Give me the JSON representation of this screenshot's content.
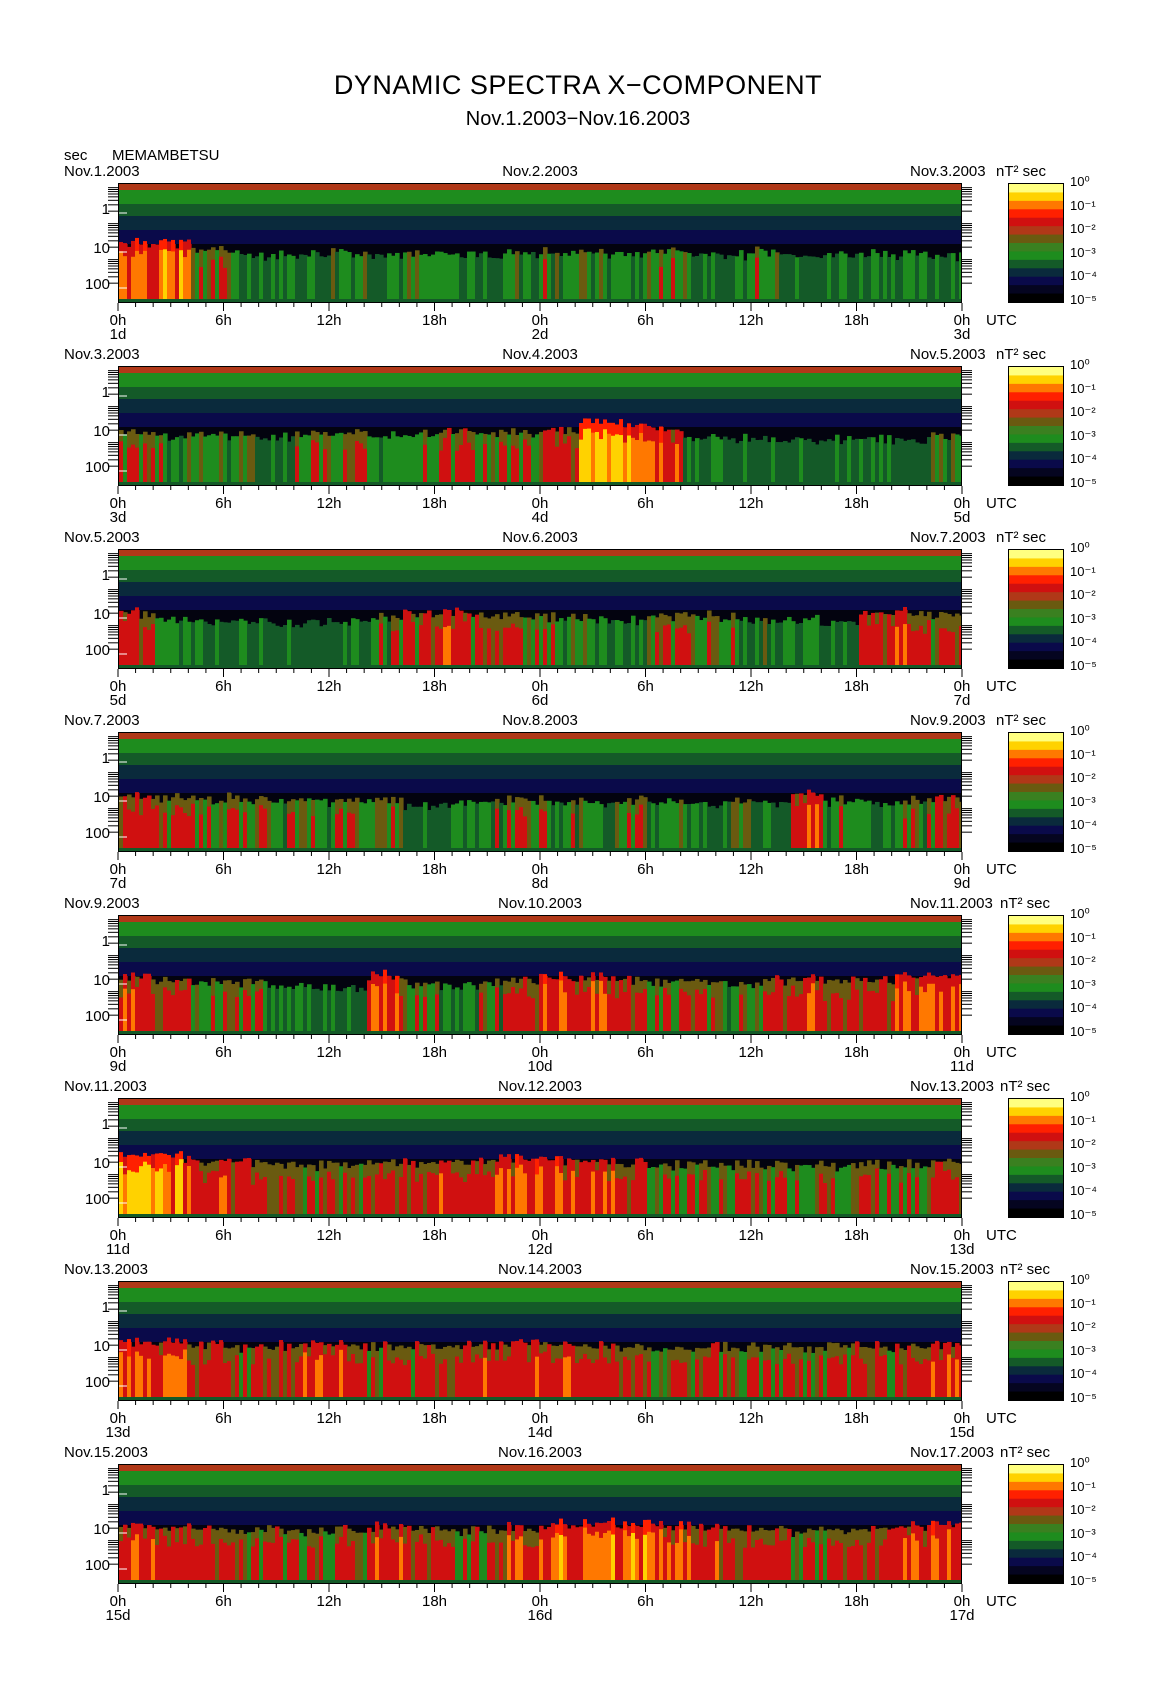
{
  "title": "DYNAMIC SPECTRA X−COMPONENT",
  "subtitle": "Nov.1.2003−Nov.16.2003",
  "y_unit": "sec",
  "station": "MEMAMBETSU",
  "colorbar": {
    "unit": "nT² sec",
    "labels": [
      "10⁰",
      "10⁻¹",
      "10⁻²",
      "10⁻³",
      "10⁻⁴",
      "10⁻⁵"
    ],
    "colors": [
      "#ffff80",
      "#ffd200",
      "#ff7800",
      "#ff2000",
      "#d01010",
      "#b03818",
      "#6a5a10",
      "#3a8020",
      "#1e8c1e",
      "#145a28",
      "#0a2a3c",
      "#0a0a4a",
      "#050520",
      "#000000"
    ]
  },
  "x_tick_labels": [
    "0h",
    "6h",
    "12h",
    "18h",
    "0h",
    "6h",
    "12h",
    "18h",
    "0h"
  ],
  "y_tick_labels": [
    "1",
    "10",
    "100"
  ],
  "utc_label": "UTC",
  "chart_data": {
    "type": "heatmap",
    "title": "DYNAMIC SPECTRA X−COMPONENT",
    "subtitle": "Nov.1.2003−Nov.16.2003",
    "ylabel": "sec",
    "yscale": "log",
    "ylim": [
      0.2,
      200
    ],
    "xlabel": "UTC",
    "color_scale": "log",
    "color_range": [
      1e-05,
      1
    ],
    "panels": [
      {
        "left_date": "Nov.1.2003",
        "mid_date": "Nov.2.2003",
        "right_date": "Nov.3.2003",
        "day_start": "1d",
        "day_mid": "2d",
        "day_end": "3d",
        "activity": [
          0.85,
          0.8,
          0.5,
          0.35,
          0.3,
          0.3,
          0.4,
          0.35,
          0.35,
          0.3,
          0.3,
          0.35,
          0.4,
          0.35,
          0.3,
          0.45,
          0.35,
          0.3,
          0.4,
          0.3,
          0.3,
          0.35,
          0.3,
          0.3
        ]
      },
      {
        "left_date": "Nov.3.2003",
        "mid_date": "Nov.4.2003",
        "right_date": "Nov.5.2003",
        "day_start": "3d",
        "day_mid": "4d",
        "day_end": "5d",
        "activity": [
          0.45,
          0.4,
          0.35,
          0.35,
          0.3,
          0.4,
          0.45,
          0.35,
          0.45,
          0.55,
          0.45,
          0.5,
          0.6,
          1.0,
          0.85,
          0.75,
          0.3,
          0.2,
          0.2,
          0.2,
          0.2,
          0.2,
          0.2,
          0.35
        ]
      },
      {
        "left_date": "Nov.5.2003",
        "mid_date": "Nov.6.2003",
        "right_date": "Nov.7.2003",
        "day_start": "5d",
        "day_mid": "6d",
        "day_end": "7d",
        "activity": [
          0.6,
          0.35,
          0.25,
          0.3,
          0.25,
          0.2,
          0.2,
          0.4,
          0.55,
          0.7,
          0.55,
          0.5,
          0.4,
          0.35,
          0.3,
          0.45,
          0.5,
          0.4,
          0.35,
          0.3,
          0.2,
          0.6,
          0.65,
          0.55
        ]
      },
      {
        "left_date": "Nov.7.2003",
        "mid_date": "Nov.8.2003",
        "right_date": "Nov.9.2003",
        "day_start": "7d",
        "day_mid": "8d",
        "day_end": "9d",
        "activity": [
          0.6,
          0.55,
          0.45,
          0.5,
          0.4,
          0.4,
          0.45,
          0.4,
          0.2,
          0.3,
          0.4,
          0.45,
          0.4,
          0.35,
          0.45,
          0.35,
          0.3,
          0.35,
          0.3,
          0.7,
          0.4,
          0.3,
          0.4,
          0.55
        ]
      },
      {
        "left_date": "Nov.9.2003",
        "mid_date": "Nov.10.2003",
        "right_date": "Nov.11.2003",
        "day_start": "9d",
        "day_mid": "10d",
        "day_end": "11d",
        "activity": [
          0.65,
          0.6,
          0.5,
          0.45,
          0.35,
          0.3,
          0.3,
          0.75,
          0.45,
          0.3,
          0.4,
          0.6,
          0.75,
          0.7,
          0.55,
          0.5,
          0.45,
          0.4,
          0.55,
          0.65,
          0.6,
          0.6,
          0.75,
          0.7
        ]
      },
      {
        "left_date": "Nov.11.2003",
        "mid_date": "Nov.12.2003",
        "right_date": "Nov.13.2003",
        "day_start": "11d",
        "day_mid": "12d",
        "day_end": "13d",
        "activity": [
          0.9,
          0.85,
          0.7,
          0.6,
          0.55,
          0.5,
          0.55,
          0.6,
          0.6,
          0.65,
          0.7,
          0.75,
          0.75,
          0.7,
          0.6,
          0.5,
          0.5,
          0.5,
          0.45,
          0.45,
          0.45,
          0.5,
          0.5,
          0.55
        ]
      },
      {
        "left_date": "Nov.13.2003",
        "mid_date": "Nov.14.2003",
        "right_date": "Nov.15.2003",
        "day_start": "13d",
        "day_mid": "14d",
        "day_end": "15d",
        "activity": [
          0.75,
          0.7,
          0.6,
          0.55,
          0.6,
          0.7,
          0.7,
          0.55,
          0.55,
          0.6,
          0.65,
          0.65,
          0.65,
          0.6,
          0.55,
          0.5,
          0.55,
          0.5,
          0.5,
          0.5,
          0.55,
          0.55,
          0.6,
          0.65
        ]
      },
      {
        "left_date": "Nov.15.2003",
        "mid_date": "Nov.16.2003",
        "right_date": "Nov.17.2003",
        "day_start": "15d",
        "day_mid": "16d",
        "day_end": "17d",
        "activity": [
          0.7,
          0.65,
          0.55,
          0.5,
          0.55,
          0.5,
          0.55,
          0.7,
          0.6,
          0.5,
          0.55,
          0.7,
          0.8,
          0.85,
          0.8,
          0.75,
          0.7,
          0.6,
          0.55,
          0.5,
          0.55,
          0.6,
          0.75,
          0.8
        ]
      }
    ]
  }
}
